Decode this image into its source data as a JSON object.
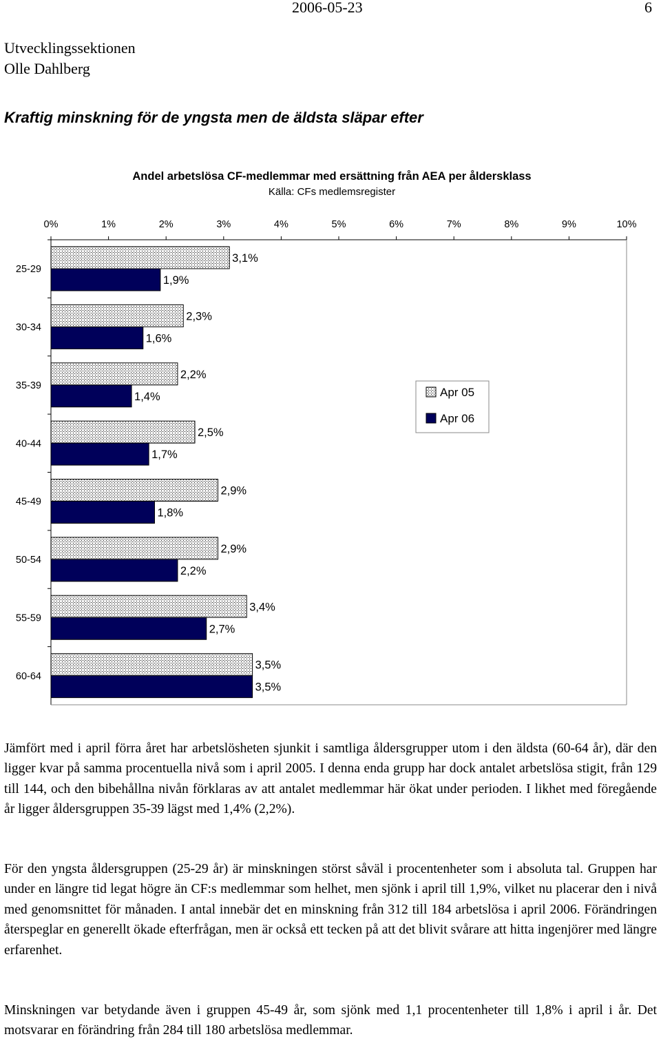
{
  "header": {
    "date": "2006-05-23",
    "page_number": "6",
    "org_line1": "Utvecklingssektionen",
    "org_line2": "Olle Dahlberg"
  },
  "heading": "Kraftig minskning för de yngsta men de äldsta släpar efter",
  "chart_data": {
    "type": "bar",
    "orientation": "horizontal",
    "title": "Andel arbetslösa CF-medlemmar med ersättning från AEA per åldersklass",
    "subtitle": "Källa: CFs medlemsregister",
    "categories": [
      "25-29",
      "30-34",
      "35-39",
      "40-44",
      "45-49",
      "50-54",
      "55-59",
      "60-64"
    ],
    "series": [
      {
        "name": "Apr 05",
        "values": [
          3.1,
          2.3,
          2.2,
          2.5,
          2.9,
          2.9,
          3.4,
          3.5
        ],
        "labels": [
          "3,1%",
          "2,3%",
          "2,2%",
          "2,5%",
          "2,9%",
          "2,9%",
          "3,4%",
          "3,5%"
        ],
        "fill": "hatched",
        "color": "#ffffff"
      },
      {
        "name": "Apr 06",
        "values": [
          1.9,
          1.6,
          1.4,
          1.7,
          1.8,
          2.2,
          2.7,
          3.5
        ],
        "labels": [
          "1,9%",
          "1,6%",
          "1,4%",
          "1,7%",
          "1,8%",
          "2,2%",
          "2,7%",
          "3,5%"
        ],
        "fill": "solid",
        "color": "#00005a"
      }
    ],
    "xlim": [
      0,
      10
    ],
    "tick_labels": [
      "0%",
      "1%",
      "2%",
      "3%",
      "4%",
      "5%",
      "6%",
      "7%",
      "8%",
      "9%",
      "10%"
    ],
    "axis_position": "top",
    "grid": false,
    "legend_position": "right"
  },
  "paragraphs": [
    "Jämfört med i april förra året har arbetslösheten sjunkit i samtliga åldersgrupper utom i den äldsta (60-64 år), där den ligger kvar på samma procentuella nivå som i april 2005. I denna enda grupp har dock antalet arbetslösa stigit, från 129 till 144, och den bibehållna nivån förklaras av att antalet medlemmar här ökat under perioden. I likhet med föregående år ligger åldersgruppen 35-39 lägst med 1,4% (2,2%).",
    "För den yngsta åldersgruppen (25-29 år) är minskningen störst såväl i procentenheter som i absoluta tal. Gruppen har under en längre tid legat högre än CF:s medlemmar som helhet, men sjönk i april till 1,9%, vilket nu placerar den i nivå med genomsnittet för månaden. I antal innebär det en minskning från 312 till 184 arbetslösa i april 2006. Förändringen återspeglar en generellt ökade efterfrågan, men är också ett tecken på att det blivit svårare att hitta ingenjörer med längre erfarenhet.",
    "Minskningen var betydande även i gruppen 45-49 år, som sjönk med 1,1 procentenheter till 1,8% i april i år. Det motsvarar en förändring från 284 till 180 arbetslösa medlemmar."
  ]
}
